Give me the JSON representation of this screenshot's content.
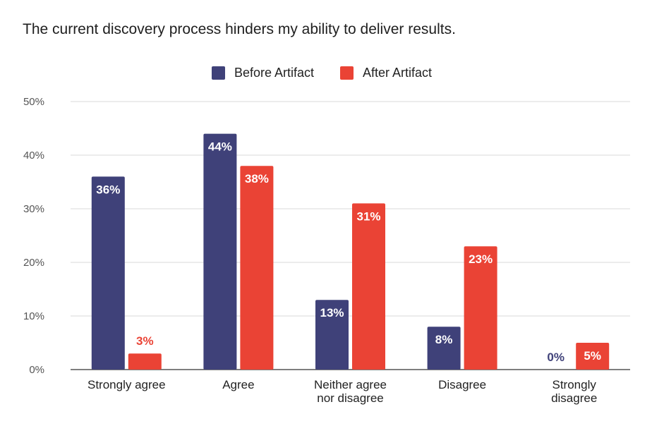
{
  "chart_data": {
    "type": "bar",
    "title": "The current discovery process hinders my ability to deliver results.",
    "categories": [
      "Strongly agree",
      "Agree",
      "Neither agree nor disagree",
      "Disagree",
      "Strongly disagree"
    ],
    "category_lines": [
      [
        "Strongly agree"
      ],
      [
        "Agree"
      ],
      [
        "Neither agree",
        "nor disagree"
      ],
      [
        "Disagree"
      ],
      [
        "Strongly",
        "disagree"
      ]
    ],
    "series": [
      {
        "name": "Before Artifact",
        "color": "#3f4179",
        "values": [
          36,
          44,
          13,
          8,
          0
        ],
        "labels": [
          "36%",
          "44%",
          "13%",
          "8%",
          "0%"
        ]
      },
      {
        "name": "After Artifact",
        "color": "#ea4335",
        "values": [
          3,
          38,
          31,
          23,
          5
        ],
        "labels": [
          "3%",
          "38%",
          "31%",
          "23%",
          "5%"
        ]
      }
    ],
    "ylim": [
      0,
      50
    ],
    "yticks": [
      "0%",
      "10%",
      "20%",
      "30%",
      "40%",
      "50%"
    ],
    "grid": true,
    "legend_position": "top"
  }
}
